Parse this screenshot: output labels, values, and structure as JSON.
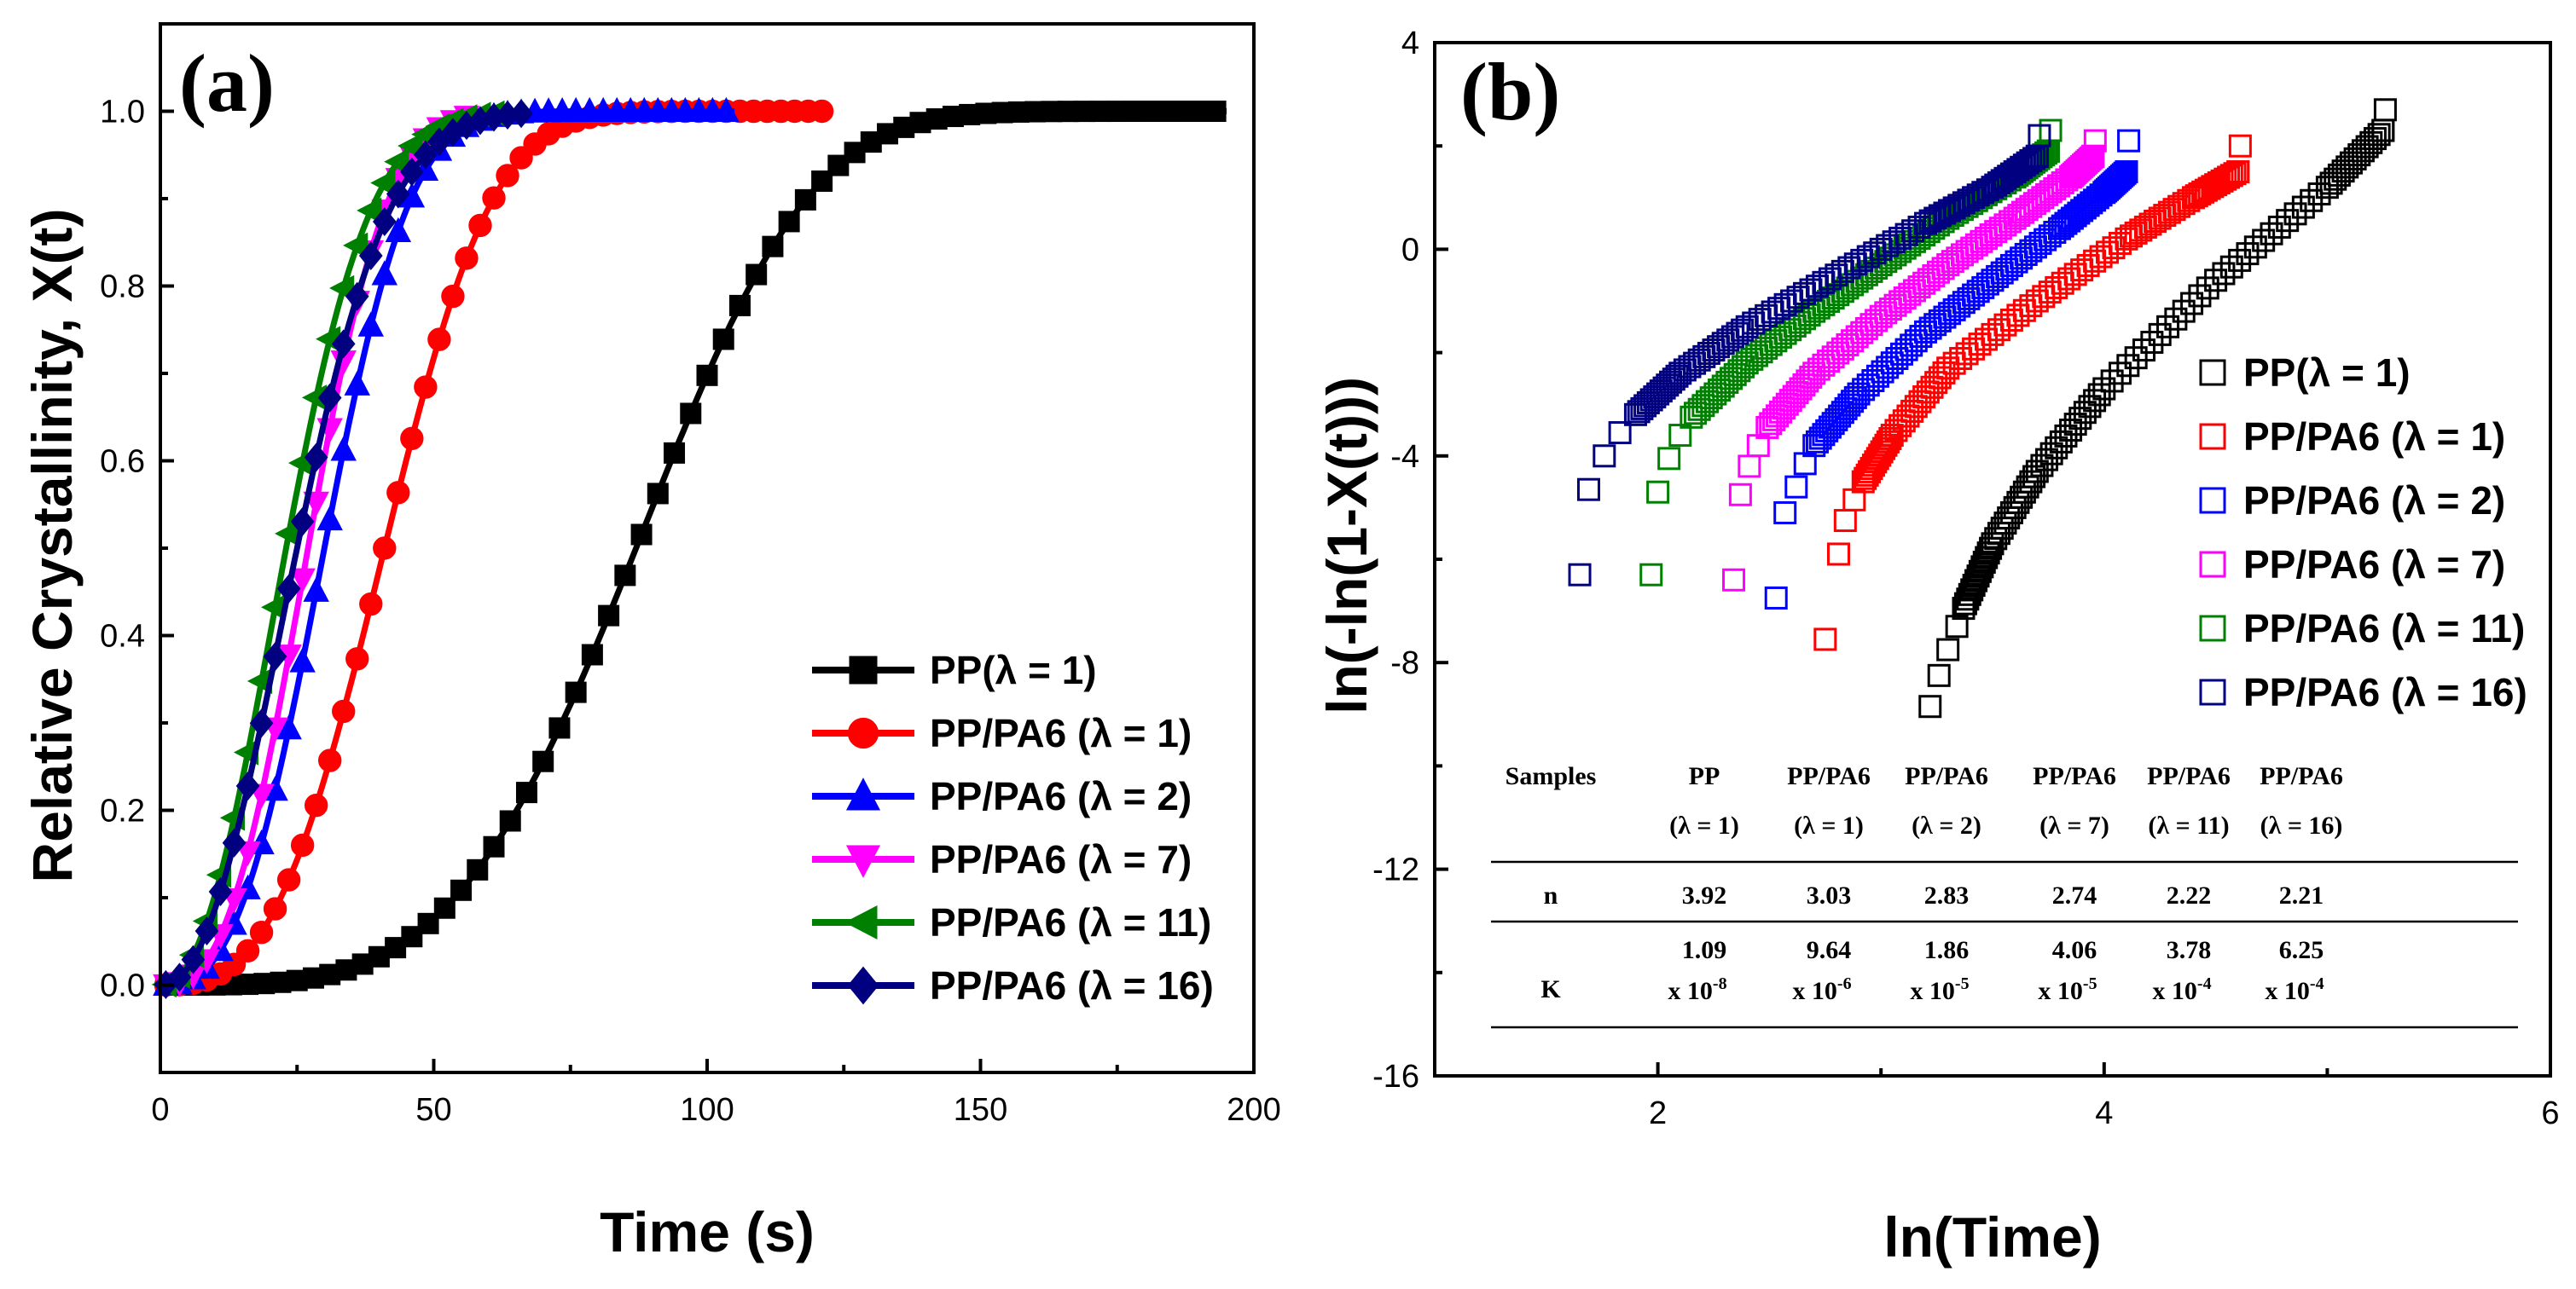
{
  "chart_data": [
    {
      "panel": "(a)",
      "type": "line",
      "xlabel": "Time (s)",
      "ylabel": "Relative Crystallinity, X(t)",
      "xlim": [
        0,
        200
      ],
      "ylim": [
        -0.1,
        1.1
      ],
      "xticks": [
        "0",
        "50",
        "100",
        "150",
        "200"
      ],
      "yticks": [
        "0.0",
        "0.2",
        "0.4",
        "0.6",
        "0.8",
        "1.0"
      ],
      "legend_position": "bottom-right",
      "series": [
        {
          "name": "PP(λ = 1)",
          "color": "#000000",
          "marker": "square",
          "t_half": 87,
          "n": 3.92,
          "x_end": 195,
          "marker_step": 3
        },
        {
          "name": "PP/PA6 (λ = 1)",
          "color": "#ff0000",
          "marker": "circle",
          "t_half": 41,
          "n": 3.03,
          "x_end": 123,
          "marker_step": 2.5
        },
        {
          "name": "PP/PA6 (λ = 2)",
          "color": "#0000ff",
          "marker": "triangle-up",
          "t_half": 30,
          "n": 2.83,
          "x_end": 105,
          "marker_step": 2.5
        },
        {
          "name": "PP/PA6 (λ = 7)",
          "color": "#ff00ff",
          "marker": "triangle-down",
          "t_half": 27,
          "n": 2.74,
          "x_end": 58,
          "marker_step": 2.5
        },
        {
          "name": "PP/PA6 (λ = 11)",
          "color": "#008000",
          "marker": "triangle-left",
          "t_half": 23,
          "n": 2.22,
          "x_end": 62,
          "marker_step": 2.5
        },
        {
          "name": "PP/PA6 (λ = 16)",
          "color": "#000080",
          "marker": "diamond",
          "t_half": 25,
          "n": 2.21,
          "x_end": 66,
          "marker_step": 2.5
        }
      ]
    },
    {
      "panel": "(b)",
      "type": "scatter",
      "xlabel": "ln(Time)",
      "ylabel": "ln(-ln(1-X(t)))",
      "xlim": [
        1,
        6
      ],
      "ylim": [
        -16,
        4
      ],
      "xticks": [
        "2",
        "4",
        "6"
      ],
      "yticks": [
        "-16",
        "-12",
        "-8",
        "-4",
        "0",
        "4"
      ],
      "legend_position": "right",
      "series": [
        {
          "name": "PP(λ = 1)",
          "color": "#000000",
          "points": [
            [
              3.22,
              -8.85
            ],
            [
              3.26,
              -8.25
            ],
            [
              3.3,
              -7.75
            ],
            [
              3.34,
              -7.3
            ],
            [
              3.37,
              -6.95
            ]
          ],
          "curve": [
            [
              3.37,
              -6.95
            ],
            [
              3.5,
              -5.7
            ],
            [
              3.7,
              -4.3
            ],
            [
              4.0,
              -2.7
            ],
            [
              4.5,
              -0.6
            ],
            [
              5.0,
              1.2
            ],
            [
              5.25,
              2.3
            ]
          ],
          "end_points": [
            [
              5.25,
              2.3
            ],
            [
              5.26,
              2.7
            ]
          ]
        },
        {
          "name": "PP/PA6 (λ = 1)",
          "color": "#ff0000",
          "points": [
            [
              2.75,
              -7.55
            ],
            [
              2.81,
              -5.9
            ],
            [
              2.84,
              -5.25
            ],
            [
              2.88,
              -4.85
            ],
            [
              2.92,
              -4.5
            ]
          ],
          "curve": [
            [
              2.92,
              -4.5
            ],
            [
              3.05,
              -3.6
            ],
            [
              3.3,
              -2.3
            ],
            [
              3.7,
              -1.0
            ],
            [
              4.1,
              0.2
            ],
            [
              4.4,
              1.0
            ],
            [
              4.6,
              1.5
            ]
          ],
          "end_points": [
            [
              4.6,
              1.5
            ],
            [
              4.61,
              2.0
            ]
          ]
        },
        {
          "name": "PP/PA6 (λ = 2)",
          "color": "#0000ff",
          "points": [
            [
              2.53,
              -6.75
            ],
            [
              2.57,
              -5.1
            ],
            [
              2.62,
              -4.6
            ],
            [
              2.66,
              -4.15
            ],
            [
              2.7,
              -3.8
            ]
          ],
          "curve": [
            [
              2.7,
              -3.8
            ],
            [
              2.9,
              -2.8
            ],
            [
              3.2,
              -1.6
            ],
            [
              3.5,
              -0.6
            ],
            [
              3.8,
              0.4
            ],
            [
              4.0,
              1.1
            ],
            [
              4.1,
              1.5
            ]
          ],
          "end_points": [
            [
              4.1,
              1.5
            ],
            [
              4.11,
              2.1
            ]
          ]
        },
        {
          "name": "PP/PA6 (λ = 7)",
          "color": "#ff00ff",
          "points": [
            [
              2.34,
              -6.4
            ],
            [
              2.37,
              -4.75
            ],
            [
              2.41,
              -4.2
            ],
            [
              2.45,
              -3.8
            ],
            [
              2.49,
              -3.45
            ]
          ],
          "curve": [
            [
              2.49,
              -3.45
            ],
            [
              2.7,
              -2.4
            ],
            [
              3.0,
              -1.3
            ],
            [
              3.3,
              -0.3
            ],
            [
              3.6,
              0.6
            ],
            [
              3.85,
              1.4
            ],
            [
              3.95,
              1.8
            ]
          ],
          "end_points": [
            [
              3.95,
              1.8
            ],
            [
              3.96,
              2.1
            ]
          ]
        },
        {
          "name": "PP/PA6 (λ = 11)",
          "color": "#008000",
          "points": [
            [
              1.97,
              -6.3
            ],
            [
              2.0,
              -4.7
            ],
            [
              2.05,
              -4.05
            ],
            [
              2.1,
              -3.6
            ],
            [
              2.15,
              -3.25
            ]
          ],
          "curve": [
            [
              2.15,
              -3.25
            ],
            [
              2.4,
              -2.2
            ],
            [
              2.7,
              -1.2
            ],
            [
              3.0,
              -0.3
            ],
            [
              3.3,
              0.6
            ],
            [
              3.6,
              1.4
            ],
            [
              3.75,
              1.9
            ]
          ],
          "end_points": [
            [
              3.75,
              1.9
            ],
            [
              3.76,
              2.3
            ]
          ]
        },
        {
          "name": "PP/PA6 (λ = 16)",
          "color": "#000080",
          "points": [
            [
              1.65,
              -6.3
            ],
            [
              1.69,
              -4.65
            ],
            [
              1.76,
              -4.0
            ],
            [
              1.83,
              -3.55
            ],
            [
              1.9,
              -3.2
            ]
          ],
          "curve": [
            [
              1.9,
              -3.2
            ],
            [
              2.1,
              -2.4
            ],
            [
              2.4,
              -1.5
            ],
            [
              2.8,
              -0.5
            ],
            [
              3.2,
              0.5
            ],
            [
              3.5,
              1.2
            ],
            [
              3.7,
              1.8
            ]
          ],
          "end_points": [
            [
              3.7,
              1.8
            ],
            [
              3.71,
              2.2
            ]
          ]
        }
      ],
      "table": {
        "header": [
          "Samples",
          "PP",
          "PP/PA6",
          "PP/PA6",
          "PP/PA6",
          "PP/PA6",
          "PP/PA6"
        ],
        "header2": [
          "",
          "(λ = 1)",
          "(λ = 1)",
          "(λ = 2)",
          "(λ = 7)",
          "(λ = 11)",
          "(λ = 16)"
        ],
        "n_label": "n",
        "n_values": [
          "3.92",
          "3.03",
          "2.83",
          "2.74",
          "2.22",
          "2.21"
        ],
        "k_label": "K",
        "k_mantissa": [
          "1.09",
          "9.64",
          "1.86",
          "4.06",
          "3.78",
          "6.25"
        ],
        "k_exponent": [
          "x 10-8",
          "x 10-6",
          "x 10-5",
          "x 10-5",
          "x 10-4",
          "x 10-4"
        ],
        "k_exp_base": [
          "x 10",
          "x 10",
          "x 10",
          "x 10",
          "x 10",
          "x 10"
        ],
        "k_exp_power": [
          "-8",
          "-6",
          "-5",
          "-5",
          "-4",
          "-4"
        ]
      }
    }
  ]
}
